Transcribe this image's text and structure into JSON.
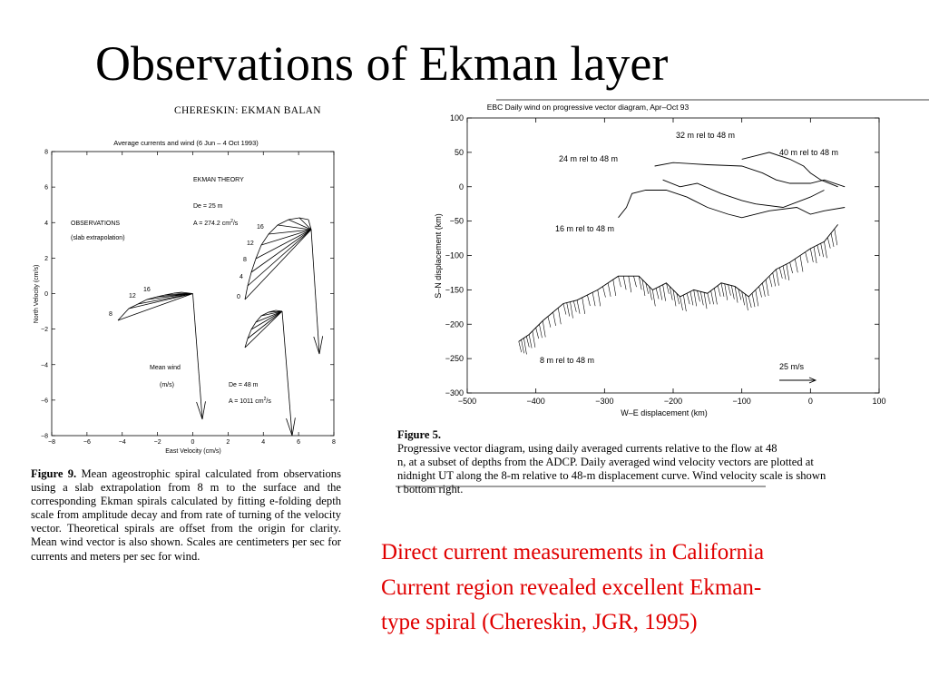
{
  "slide": {
    "title": "Observations of Ekman layer",
    "body_lines": [
      "Direct current measurements in California",
      "Current region revealed excellent Ekman-",
      "type spiral (Chereskin, JGR, 1995)"
    ],
    "text_color": "#e00000"
  },
  "left_figure": {
    "header": "CHERESKIN: EKMAN BALAN",
    "plot_title": "Average currents and wind (6 Jun – 4 Oct 1993)",
    "labels": {
      "theory": "EKMAN THEORY",
      "de_25": "De = 25 m",
      "a_274": "A = 274.2 cm",
      "a_274_sup": "2",
      "a_274_unit": "/s",
      "observations": "OBSERVATIONS",
      "slab": "(slab extrapolation)",
      "mean_wind": "Mean wind",
      "ms": "(m/s)",
      "de_48": "De = 48 m",
      "a_1011": "A = 1011 cm",
      "a_1011_sup": "2",
      "a_1011_unit": "/s",
      "obs_depths": [
        "16",
        "12",
        "8"
      ],
      "theory_depths": [
        "16",
        "12",
        "8",
        "4",
        "0"
      ]
    },
    "caption_bold": "Figure 9.",
    "caption_text": "Mean ageostrophic spiral calculated from observations using a slab extrapolation from 8 m to the surface and the corresponding Ekman spirals calculated by fitting e-folding depth scale from amplitude decay and from rate of turning of the velocity vector. Theoretical spirals are offset from the origin for clarity. Mean wind vector is also shown. Scales are centimeters per sec for currents and meters per sec for wind.",
    "chart_data": {
      "type": "scatter",
      "title": "Average currents and wind (6 Jun – 4 Oct 1993)",
      "xlabel": "East Velocity (cm/s)",
      "ylabel": "North Velocity (cm/s)",
      "xlim": [
        -8,
        8
      ],
      "ylim": [
        -8,
        8
      ],
      "xticks": [
        "−8",
        "−6",
        "−4",
        "−2",
        "0",
        "2",
        "4",
        "6",
        "8"
      ],
      "yticks": [
        "8",
        "6",
        "4",
        "2",
        "0",
        "−2",
        "−4",
        "−6",
        "−8"
      ]
    }
  },
  "right_figure": {
    "caption_bold": "Figure 5.",
    "caption_lines": [
      "Progressive vector diagram, using daily averaged currents relative to the flow at 48",
      "n, at a subset of depths from the ADCP. Daily averaged wind velocity vectors are plotted at",
      "nidnight UT along the 8-m relative to 48-m displacement curve.  Wind velocity scale is shown",
      "t bottom right."
    ],
    "chart_data": {
      "type": "line",
      "title": "EBC Daily wind on progressive vector diagram, Apr–Oct 93",
      "xlabel": "W–E displacement (km)",
      "ylabel": "S–N displacement (km)",
      "xlim": [
        -500,
        100
      ],
      "ylim": [
        -300,
        100
      ],
      "xticks": [
        "−500",
        "−400",
        "−300",
        "−200",
        "−100",
        "0",
        "100"
      ],
      "yticks": [
        "100",
        "50",
        "0",
        "−50",
        "−100",
        "−150",
        "−200",
        "−250",
        "−300"
      ],
      "series": [
        {
          "name": "32 m rel to 48 m",
          "x": [
            -227,
            -200,
            -150,
            -100,
            -70,
            -50,
            -30,
            0,
            20,
            50
          ],
          "y": [
            30,
            35,
            32,
            30,
            20,
            10,
            5,
            5,
            10,
            0
          ]
        },
        {
          "name": "40 m rel to 48 m",
          "x": [
            -100,
            -80,
            -60,
            -30,
            -10,
            0,
            15,
            40
          ],
          "y": [
            40,
            45,
            50,
            40,
            30,
            20,
            10,
            0
          ]
        },
        {
          "name": "24 m rel to 48 m",
          "x": [
            -215,
            -190,
            -165,
            -130,
            -100,
            -80,
            -40,
            0,
            20
          ],
          "y": [
            10,
            0,
            5,
            -10,
            -20,
            -25,
            -30,
            -15,
            -5
          ]
        },
        {
          "name": "16 m rel to 48 m",
          "x": [
            -280,
            -268,
            -260,
            -240,
            -210,
            -180,
            -150,
            -120,
            -100,
            -60,
            -20,
            0,
            20,
            50
          ],
          "y": [
            -45,
            -30,
            -10,
            -5,
            -5,
            -15,
            -30,
            -40,
            -45,
            -35,
            -30,
            -40,
            -35,
            -30
          ]
        },
        {
          "name": "8 m rel to 48 m",
          "x": [
            -425,
            -410,
            -390,
            -360,
            -340,
            -310,
            -280,
            -250,
            -230,
            -210,
            -190,
            -170,
            -150,
            -130,
            -110,
            -90,
            -70,
            -50,
            -30,
            0,
            20,
            40
          ],
          "y": [
            -225,
            -215,
            -195,
            -170,
            -165,
            -150,
            -130,
            -130,
            -150,
            -140,
            -160,
            -150,
            -155,
            -140,
            -145,
            -160,
            -140,
            -120,
            -110,
            -90,
            -80,
            -55
          ]
        }
      ],
      "scale_label": "25 m/s"
    }
  }
}
